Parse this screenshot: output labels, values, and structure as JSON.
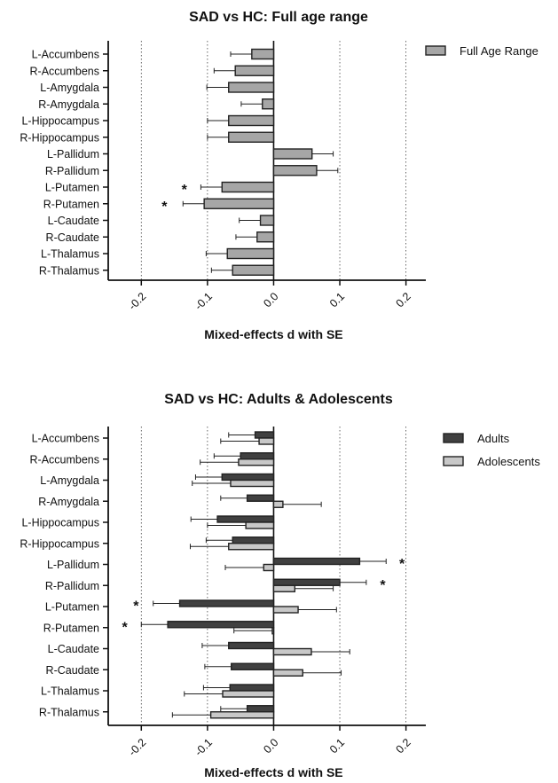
{
  "chart_data": [
    {
      "type": "bar",
      "orientation": "horizontal",
      "title": "SAD vs HC: Full age range",
      "xlabel": "Mixed-effects d with SE",
      "xlim": [
        -0.25,
        0.23
      ],
      "xticks": [
        "-0.2",
        "-0.1",
        "0.0",
        "0.1",
        "0.2"
      ],
      "xtick_values": [
        -0.2,
        -0.1,
        0.0,
        0.1,
        0.2
      ],
      "categories": [
        "L-Accumbens",
        "R-Accumbens",
        "L-Amygdala",
        "R-Amygdala",
        "L-Hippocampus",
        "R-Hippocampus",
        "L-Pallidum",
        "R-Pallidum",
        "L-Putamen",
        "R-Putamen",
        "L-Caudate",
        "R-Caudate",
        "L-Thalamus",
        "R-Thalamus"
      ],
      "series": [
        {
          "name": "Full Age Range",
          "color": "#a6a6a6",
          "values": [
            -0.033,
            -0.058,
            -0.068,
            -0.017,
            -0.068,
            -0.068,
            0.058,
            0.065,
            -0.078,
            -0.105,
            -0.02,
            -0.025,
            -0.07,
            -0.062
          ],
          "errors": [
            0.032,
            0.032,
            0.033,
            0.032,
            0.032,
            0.032,
            0.032,
            0.032,
            0.032,
            0.032,
            0.032,
            0.032,
            0.032,
            0.032
          ]
        }
      ],
      "significance": [
        {
          "category": "L-Putamen",
          "series": "Full Age Range",
          "label": "*",
          "x": -0.135
        },
        {
          "category": "R-Putamen",
          "series": "Full Age Range",
          "label": "*",
          "x": -0.165
        }
      ],
      "grid": "vertical dotted lines at -0.2, -0.1, 0.1, 0.2",
      "legend": "top-right"
    },
    {
      "type": "bar",
      "orientation": "horizontal",
      "title": "SAD vs HC: Adults & Adolescents",
      "xlabel": "Mixed-effects d with SE",
      "xlim": [
        -0.25,
        0.23
      ],
      "xticks": [
        "-0.2",
        "-0.1",
        "0.0",
        "0.1",
        "0.2"
      ],
      "xtick_values": [
        -0.2,
        -0.1,
        0.0,
        0.1,
        0.2
      ],
      "categories": [
        "L-Accumbens",
        "R-Accumbens",
        "L-Amygdala",
        "R-Amygdala",
        "L-Hippocampus",
        "R-Hippocampus",
        "L-Pallidum",
        "R-Pallidum",
        "L-Putamen",
        "R-Putamen",
        "L-Caudate",
        "R-Caudate",
        "L-Thalamus",
        "R-Thalamus"
      ],
      "series": [
        {
          "name": "Adults",
          "color": "#404040",
          "values": [
            -0.028,
            -0.05,
            -0.078,
            -0.04,
            -0.085,
            -0.062,
            0.13,
            0.1,
            -0.142,
            -0.16,
            -0.068,
            -0.064,
            -0.066,
            -0.04
          ],
          "errors": [
            0.04,
            0.04,
            0.04,
            0.04,
            0.04,
            0.04,
            0.04,
            0.04,
            0.04,
            0.04,
            0.04,
            0.04,
            0.04,
            0.04
          ]
        },
        {
          "name": "Adolescents",
          "color": "#c8c8c8",
          "values": [
            -0.022,
            -0.053,
            -0.065,
            0.014,
            -0.042,
            -0.068,
            -0.015,
            0.032,
            0.037,
            -0.002,
            0.057,
            0.044,
            -0.077,
            -0.095
          ],
          "errors": [
            0.058,
            0.058,
            0.058,
            0.058,
            0.058,
            0.058,
            0.058,
            0.058,
            0.058,
            0.058,
            0.058,
            0.058,
            0.058,
            0.058
          ]
        }
      ],
      "significance": [
        {
          "category": "L-Pallidum",
          "series": "Adults",
          "label": "*",
          "x": 0.194
        },
        {
          "category": "R-Pallidum",
          "series": "Adults",
          "label": "*",
          "x": 0.165
        },
        {
          "category": "L-Putamen",
          "series": "Adults",
          "label": "*",
          "x": -0.208
        },
        {
          "category": "R-Putamen",
          "series": "Adults",
          "label": "*",
          "x": -0.225
        }
      ],
      "grid": "vertical dotted lines at -0.2, -0.1, 0.1, 0.2",
      "legend": "top-right"
    }
  ]
}
